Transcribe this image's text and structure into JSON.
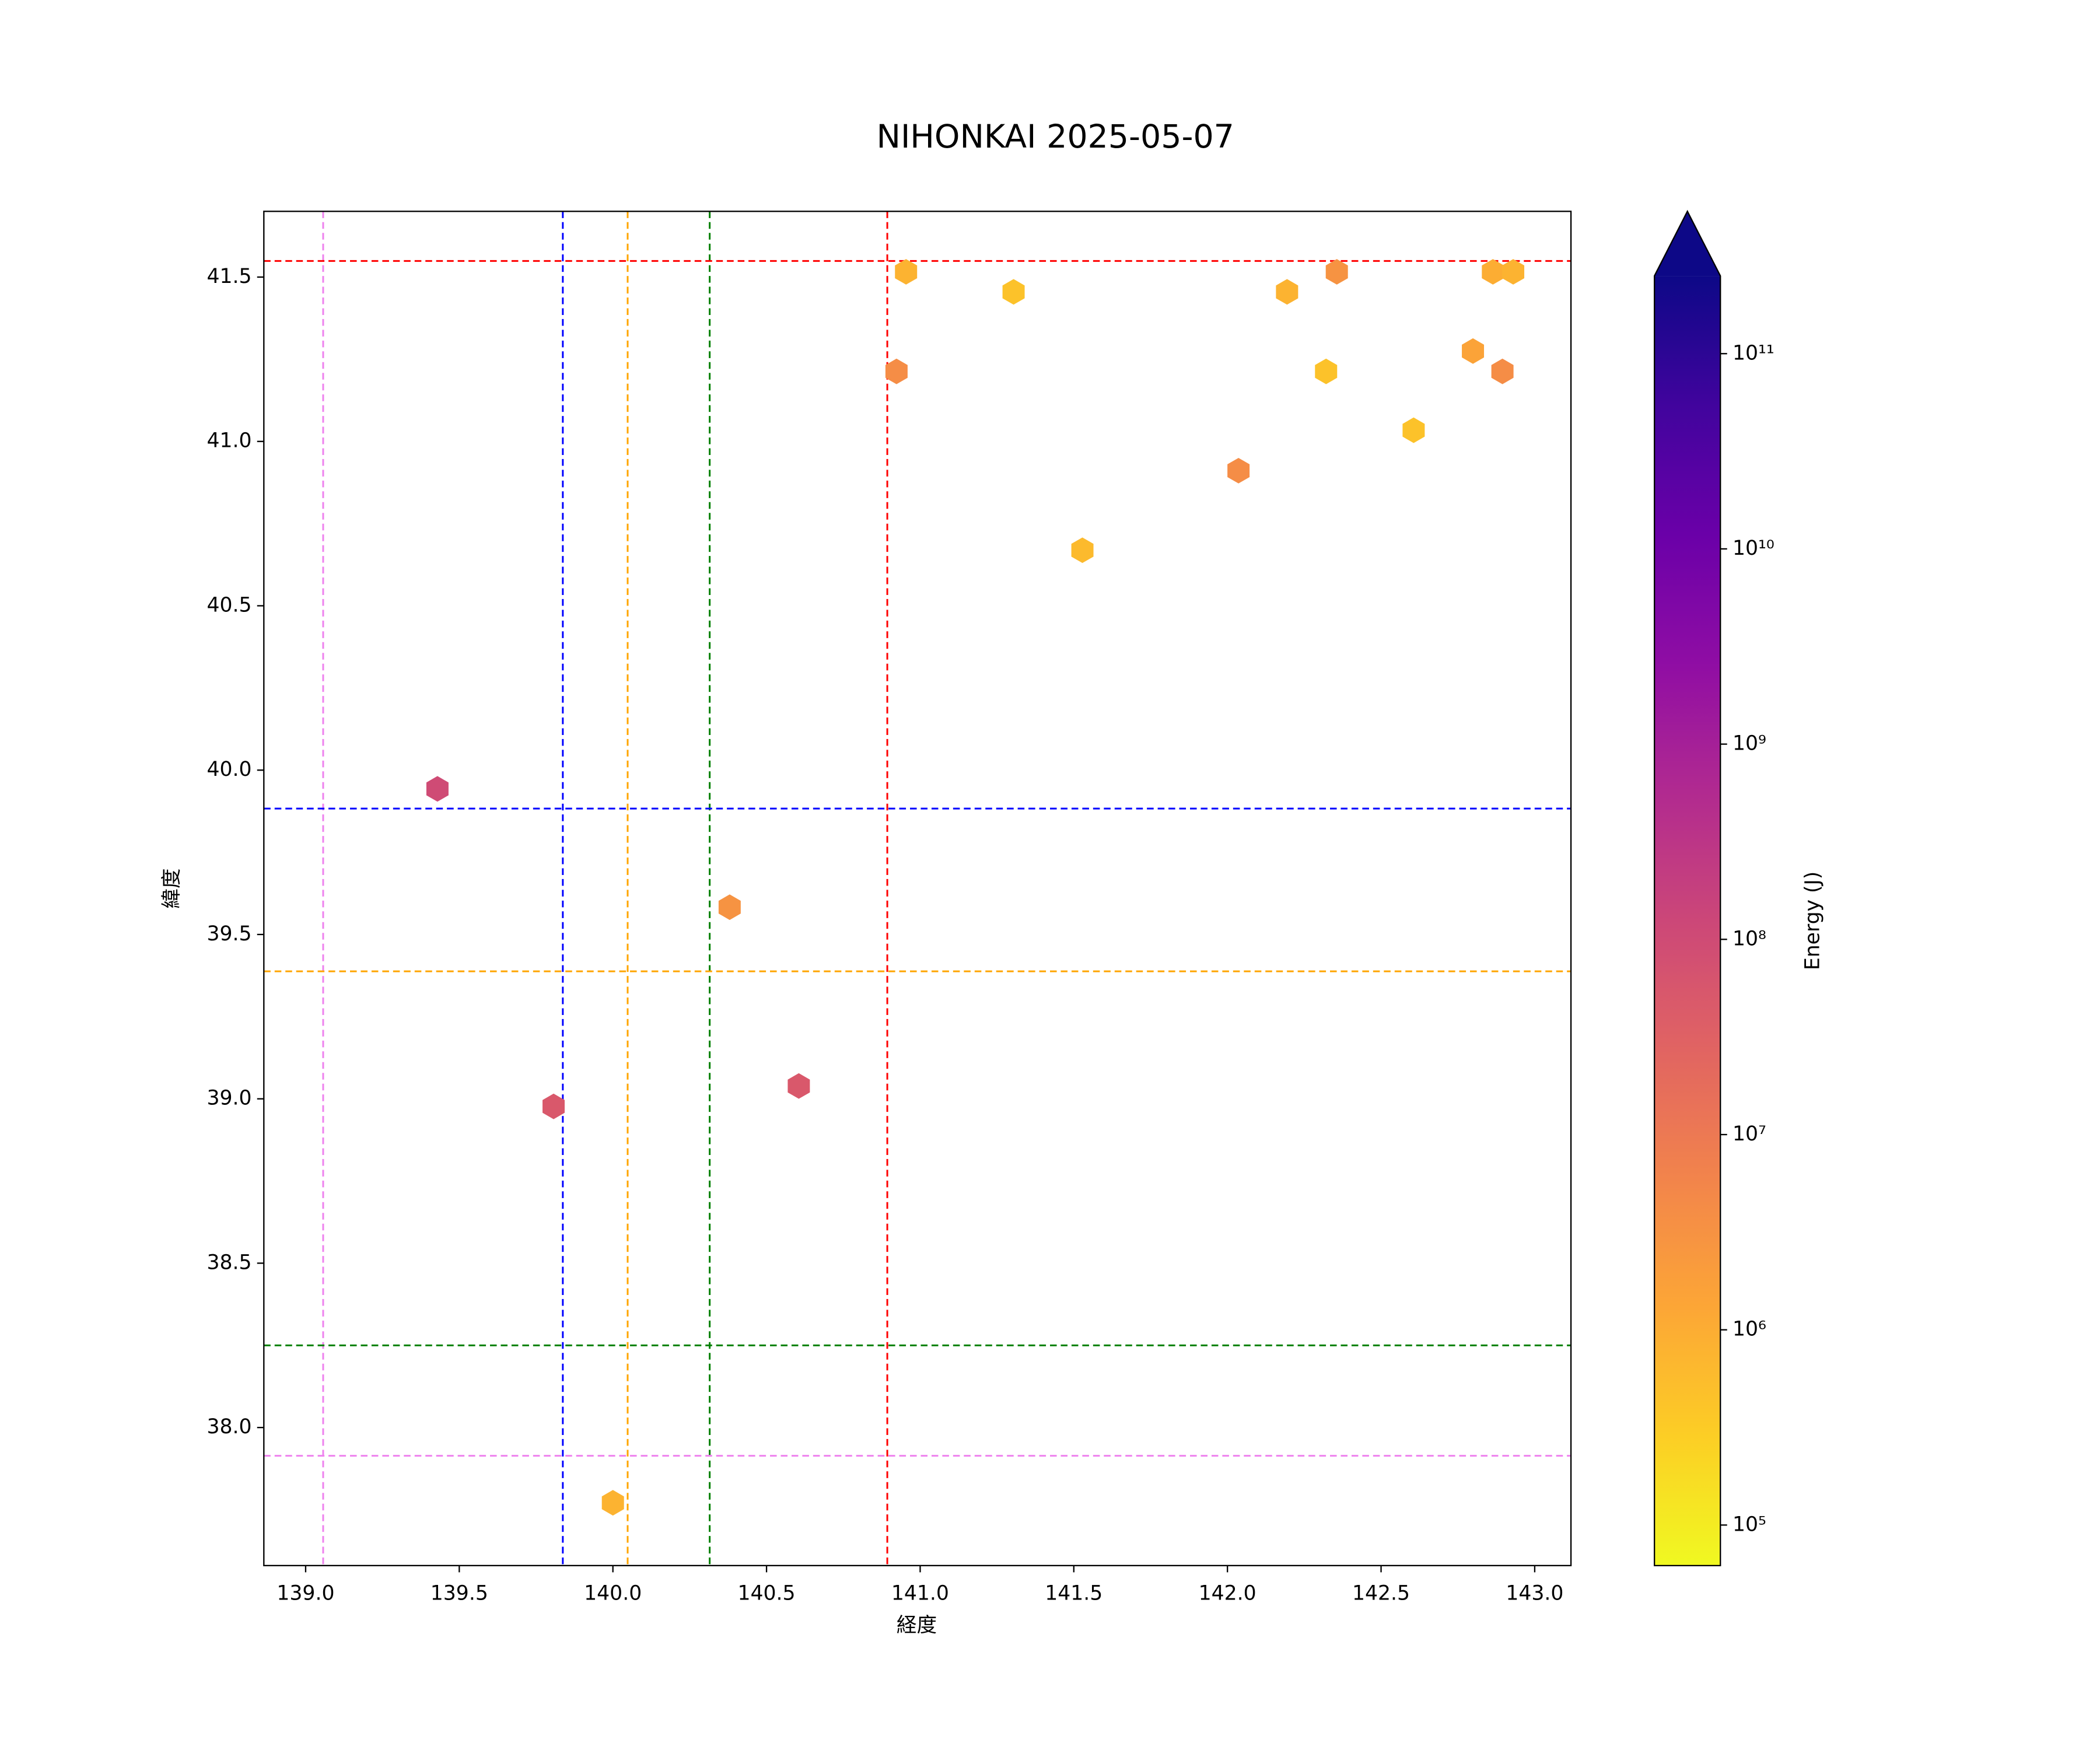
{
  "chart_data": {
    "type": "hexbin",
    "title": "NIHONKAI 2025-05-07",
    "xlabel": "経度",
    "ylabel": "緯度",
    "x": [
      140.954,
      140.923,
      141.304,
      141.528,
      142.036,
      142.194,
      142.321,
      142.356,
      142.606,
      142.799,
      142.864,
      142.895,
      142.93,
      139.429,
      140.38,
      139.807,
      140.605,
      140.0
    ],
    "y": [
      41.516,
      41.213,
      41.455,
      40.669,
      40.911,
      41.455,
      41.213,
      41.516,
      41.034,
      41.275,
      41.516,
      41.213,
      41.516,
      39.943,
      39.583,
      38.977,
      39.039,
      37.771
    ],
    "values": [
      800000,
      4000000,
      450000,
      600000,
      4000000,
      800000,
      450000,
      3000000,
      450000,
      1500000,
      1000000,
      4000000,
      800000,
      100000000,
      3000000,
      50000000,
      50000000,
      800000
    ],
    "xlim": [
      138.864,
      143.118
    ],
    "ylim": [
      37.58,
      41.7
    ],
    "xticks": [
      {
        "value": 139,
        "label": "139.0"
      },
      139.5,
      {
        "value": 140,
        "label": "140.0"
      },
      140.5,
      {
        "value": 141,
        "label": "141.0"
      },
      141.5,
      {
        "value": 142,
        "label": "142.0"
      },
      142.5,
      {
        "value": 143,
        "label": "143.0"
      }
    ],
    "yticks": [
      {
        "value": 38,
        "label": "38.0"
      },
      38.5,
      {
        "value": 39,
        "label": "39.0"
      },
      39.5,
      {
        "value": 40,
        "label": "40.0"
      },
      40.5,
      {
        "value": 41,
        "label": "41.0"
      },
      41.5
    ],
    "colorbar": {
      "label": "Energy (J)",
      "log": true,
      "lim": [
        62000,
        250000000000
      ],
      "extend": "max",
      "ticks": [
        {
          "value": 100000,
          "label": "10⁵"
        },
        {
          "value": 1000000,
          "label": "10⁶"
        },
        {
          "value": 10000000,
          "label": "10⁷"
        },
        {
          "value": 100000000,
          "label": "10⁸"
        },
        {
          "value": 1000000000,
          "label": "10⁹"
        },
        {
          "value": 10000000000,
          "label": "10¹⁰"
        },
        {
          "value": 100000000000,
          "label": "10¹¹"
        }
      ]
    },
    "vlines": [
      {
        "value": 139.057,
        "color": "violet"
      },
      {
        "value": 139.837,
        "color": "blue"
      },
      {
        "value": 140.048,
        "color": "orange"
      },
      {
        "value": 140.315,
        "color": "green"
      },
      {
        "value": 140.893,
        "color": "red"
      }
    ],
    "hlines": [
      {
        "value": 41.549,
        "color": "red"
      },
      {
        "value": 39.883,
        "color": "blue"
      },
      {
        "value": 39.388,
        "color": "orange"
      },
      {
        "value": 38.25,
        "color": "green"
      },
      {
        "value": 37.914,
        "color": "violet"
      }
    ]
  }
}
